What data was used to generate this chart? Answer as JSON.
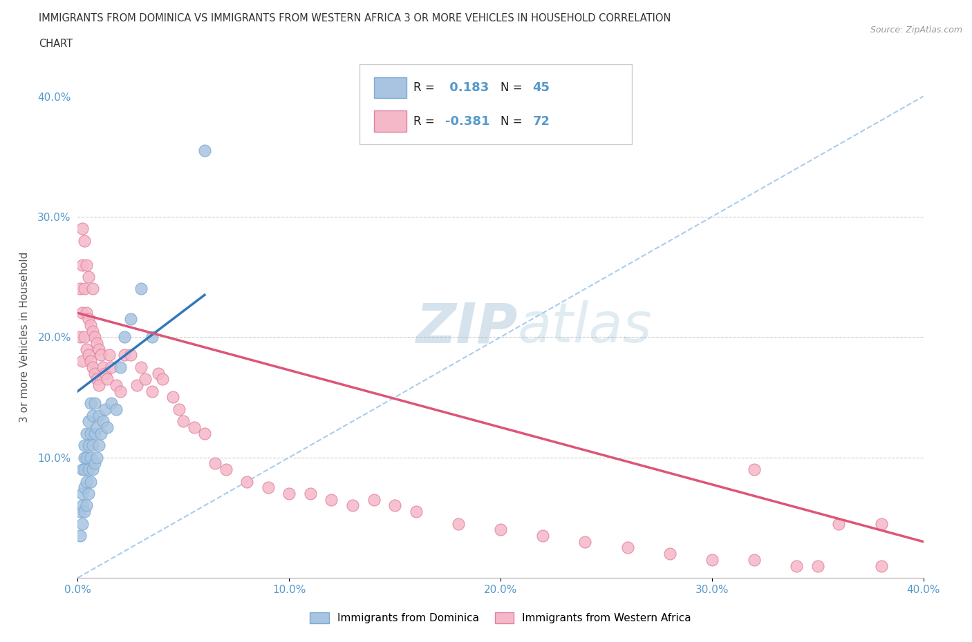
{
  "title_line1": "IMMIGRANTS FROM DOMINICA VS IMMIGRANTS FROM WESTERN AFRICA 3 OR MORE VEHICLES IN HOUSEHOLD CORRELATION",
  "title_line2": "CHART",
  "source": "Source: ZipAtlas.com",
  "ylabel": "3 or more Vehicles in Household",
  "xlim": [
    0.0,
    0.4
  ],
  "ylim": [
    0.0,
    0.4
  ],
  "dominica_color": "#a8c4e0",
  "dominica_edge": "#7aaad0",
  "western_africa_color": "#f5b8c8",
  "western_africa_edge": "#e080a0",
  "dominica_R": 0.183,
  "dominica_N": 45,
  "western_africa_R": -0.381,
  "western_africa_N": 72,
  "dominica_line_color": "#3377bb",
  "western_africa_line_color": "#dd5577",
  "diagonal_color": "#aaccee",
  "watermark_zip": "ZIP",
  "watermark_atlas": "atlas",
  "dominica_x": [
    0.001,
    0.001,
    0.002,
    0.002,
    0.002,
    0.002,
    0.003,
    0.003,
    0.003,
    0.003,
    0.003,
    0.004,
    0.004,
    0.004,
    0.004,
    0.005,
    0.005,
    0.005,
    0.005,
    0.006,
    0.006,
    0.006,
    0.006,
    0.007,
    0.007,
    0.007,
    0.008,
    0.008,
    0.008,
    0.009,
    0.009,
    0.01,
    0.01,
    0.011,
    0.012,
    0.013,
    0.014,
    0.016,
    0.018,
    0.02,
    0.022,
    0.025,
    0.03,
    0.035,
    0.06
  ],
  "dominica_y": [
    0.035,
    0.055,
    0.045,
    0.06,
    0.07,
    0.09,
    0.055,
    0.075,
    0.09,
    0.1,
    0.11,
    0.06,
    0.08,
    0.1,
    0.12,
    0.07,
    0.09,
    0.11,
    0.13,
    0.08,
    0.1,
    0.12,
    0.145,
    0.09,
    0.11,
    0.135,
    0.095,
    0.12,
    0.145,
    0.1,
    0.125,
    0.11,
    0.135,
    0.12,
    0.13,
    0.14,
    0.125,
    0.145,
    0.14,
    0.175,
    0.2,
    0.215,
    0.24,
    0.2,
    0.355
  ],
  "western_africa_x": [
    0.001,
    0.001,
    0.002,
    0.002,
    0.002,
    0.002,
    0.003,
    0.003,
    0.003,
    0.004,
    0.004,
    0.004,
    0.005,
    0.005,
    0.005,
    0.006,
    0.006,
    0.007,
    0.007,
    0.007,
    0.008,
    0.008,
    0.009,
    0.009,
    0.01,
    0.01,
    0.011,
    0.012,
    0.013,
    0.014,
    0.015,
    0.016,
    0.018,
    0.02,
    0.022,
    0.025,
    0.028,
    0.03,
    0.032,
    0.035,
    0.038,
    0.04,
    0.045,
    0.048,
    0.05,
    0.055,
    0.06,
    0.065,
    0.07,
    0.08,
    0.09,
    0.1,
    0.11,
    0.12,
    0.13,
    0.14,
    0.15,
    0.16,
    0.18,
    0.2,
    0.22,
    0.24,
    0.26,
    0.28,
    0.3,
    0.32,
    0.34,
    0.35,
    0.36,
    0.38,
    0.32,
    0.38
  ],
  "western_africa_y": [
    0.2,
    0.24,
    0.18,
    0.22,
    0.26,
    0.29,
    0.2,
    0.24,
    0.28,
    0.19,
    0.22,
    0.26,
    0.185,
    0.215,
    0.25,
    0.18,
    0.21,
    0.175,
    0.205,
    0.24,
    0.17,
    0.2,
    0.165,
    0.195,
    0.16,
    0.19,
    0.185,
    0.175,
    0.17,
    0.165,
    0.185,
    0.175,
    0.16,
    0.155,
    0.185,
    0.185,
    0.16,
    0.175,
    0.165,
    0.155,
    0.17,
    0.165,
    0.15,
    0.14,
    0.13,
    0.125,
    0.12,
    0.095,
    0.09,
    0.08,
    0.075,
    0.07,
    0.07,
    0.065,
    0.06,
    0.065,
    0.06,
    0.055,
    0.045,
    0.04,
    0.035,
    0.03,
    0.025,
    0.02,
    0.015,
    0.015,
    0.01,
    0.01,
    0.045,
    0.01,
    0.09,
    0.045
  ]
}
